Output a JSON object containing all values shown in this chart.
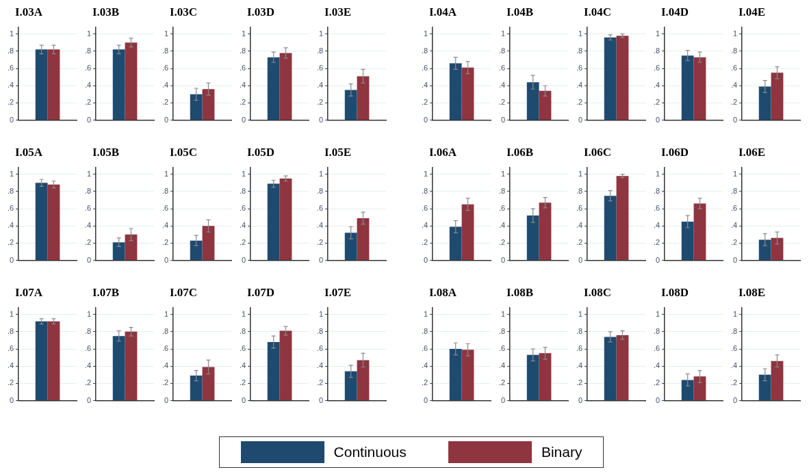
{
  "chart_data": [
    {
      "type": "bar",
      "title": "I.03A",
      "categories": [
        null
      ],
      "ylim": [
        0,
        1.08
      ],
      "yticks": [
        {
          "value": 0,
          "label": "0"
        },
        {
          "value": 0.2,
          "label": ".2"
        },
        {
          "value": 0.4,
          "label": ".4"
        },
        {
          "value": 0.6,
          "label": ".6"
        },
        {
          "value": 0.8,
          "label": ".8"
        },
        {
          "value": 1,
          "label": "1"
        }
      ],
      "grid": "y",
      "legend": "bottom",
      "series": [
        {
          "name": "Continuous",
          "color": "#1f4a70",
          "values": [
            0.82
          ],
          "errors": [
            0.05
          ]
        },
        {
          "name": "Binary",
          "color": "#8e3540",
          "values": [
            0.82
          ],
          "errors": [
            0.05
          ]
        }
      ]
    },
    {
      "type": "bar",
      "title": "I.03B",
      "categories": [
        null
      ],
      "ylim": [
        0,
        1.08
      ],
      "yticks": [
        {
          "value": 0,
          "label": "0"
        },
        {
          "value": 0.2,
          "label": ".2"
        },
        {
          "value": 0.4,
          "label": ".4"
        },
        {
          "value": 0.6,
          "label": ".6"
        },
        {
          "value": 0.8,
          "label": ".8"
        },
        {
          "value": 1,
          "label": "1"
        }
      ],
      "grid": "y",
      "series": [
        {
          "color": "#1f4a70",
          "values": [
            0.82
          ],
          "errors": [
            0.05
          ]
        },
        {
          "color": "#8e3540",
          "values": [
            0.9
          ],
          "errors": [
            0.05
          ]
        }
      ]
    },
    {
      "type": "bar",
      "title": "I.03C",
      "categories": [
        null
      ],
      "ylim": [
        0,
        1.08
      ],
      "yticks": [
        {
          "value": 0,
          "label": "0"
        },
        {
          "value": 0.2,
          "label": ".2"
        },
        {
          "value": 0.4,
          "label": ".4"
        },
        {
          "value": 0.6,
          "label": ".6"
        },
        {
          "value": 0.8,
          "label": ".8"
        },
        {
          "value": 1,
          "label": "1"
        }
      ],
      "grid": "y",
      "series": [
        {
          "color": "#1f4a70",
          "values": [
            0.3
          ],
          "errors": [
            0.07
          ]
        },
        {
          "color": "#8e3540",
          "values": [
            0.36
          ],
          "errors": [
            0.07
          ]
        }
      ]
    },
    {
      "type": "bar",
      "title": "I.03D",
      "categories": [
        null
      ],
      "ylim": [
        0,
        1.08
      ],
      "yticks": [
        {
          "value": 0,
          "label": "0"
        },
        {
          "value": 0.2,
          "label": ".2"
        },
        {
          "value": 0.4,
          "label": ".4"
        },
        {
          "value": 0.6,
          "label": ".6"
        },
        {
          "value": 0.8,
          "label": ".8"
        },
        {
          "value": 1,
          "label": "1"
        }
      ],
      "grid": "y",
      "series": [
        {
          "color": "#1f4a70",
          "values": [
            0.73
          ],
          "errors": [
            0.06
          ]
        },
        {
          "color": "#8e3540",
          "values": [
            0.78
          ],
          "errors": [
            0.06
          ]
        }
      ]
    },
    {
      "type": "bar",
      "title": "I.03E",
      "categories": [
        null
      ],
      "ylim": [
        0,
        1.08
      ],
      "yticks": [
        {
          "value": 0,
          "label": "0"
        },
        {
          "value": 0.2,
          "label": ".2"
        },
        {
          "value": 0.4,
          "label": ".4"
        },
        {
          "value": 0.6,
          "label": ".6"
        },
        {
          "value": 0.8,
          "label": ".8"
        },
        {
          "value": 1,
          "label": "1"
        }
      ],
      "grid": "y",
      "series": [
        {
          "color": "#1f4a70",
          "values": [
            0.35
          ],
          "errors": [
            0.07
          ]
        },
        {
          "color": "#8e3540",
          "values": [
            0.51
          ],
          "errors": [
            0.08
          ]
        }
      ]
    },
    {
      "type": "bar",
      "title": "I.04A",
      "categories": [
        null
      ],
      "ylim": [
        0,
        1.08
      ],
      "yticks": [
        {
          "value": 0,
          "label": "0"
        },
        {
          "value": 0.2,
          "label": ".2"
        },
        {
          "value": 0.4,
          "label": ".4"
        },
        {
          "value": 0.6,
          "label": ".6"
        },
        {
          "value": 0.8,
          "label": ".8"
        },
        {
          "value": 1,
          "label": "1"
        }
      ],
      "grid": "y",
      "series": [
        {
          "color": "#1f4a70",
          "values": [
            0.66
          ],
          "errors": [
            0.07
          ]
        },
        {
          "color": "#8e3540",
          "values": [
            0.61
          ],
          "errors": [
            0.07
          ]
        }
      ]
    },
    {
      "type": "bar",
      "title": "I.04B",
      "categories": [
        null
      ],
      "ylim": [
        0,
        1.08
      ],
      "yticks": [
        {
          "value": 0,
          "label": "0"
        },
        {
          "value": 0.2,
          "label": ".2"
        },
        {
          "value": 0.4,
          "label": ".4"
        },
        {
          "value": 0.6,
          "label": ".6"
        },
        {
          "value": 0.8,
          "label": ".8"
        },
        {
          "value": 1,
          "label": "1"
        }
      ],
      "grid": "y",
      "series": [
        {
          "color": "#1f4a70",
          "values": [
            0.44
          ],
          "errors": [
            0.08
          ]
        },
        {
          "color": "#8e3540",
          "values": [
            0.34
          ],
          "errors": [
            0.06
          ]
        }
      ]
    },
    {
      "type": "bar",
      "title": "I.04C",
      "categories": [
        null
      ],
      "ylim": [
        0,
        1.08
      ],
      "yticks": [
        {
          "value": 0,
          "label": "0"
        },
        {
          "value": 0.2,
          "label": ".2"
        },
        {
          "value": 0.4,
          "label": ".4"
        },
        {
          "value": 0.6,
          "label": ".6"
        },
        {
          "value": 0.8,
          "label": ".8"
        },
        {
          "value": 1,
          "label": "1"
        }
      ],
      "grid": "y",
      "series": [
        {
          "color": "#1f4a70",
          "values": [
            0.96
          ],
          "errors": [
            0.03
          ]
        },
        {
          "color": "#8e3540",
          "values": [
            0.98
          ],
          "errors": [
            0.02
          ]
        }
      ]
    },
    {
      "type": "bar",
      "title": "I.04D",
      "categories": [
        null
      ],
      "ylim": [
        0,
        1.08
      ],
      "yticks": [
        {
          "value": 0,
          "label": "0"
        },
        {
          "value": 0.2,
          "label": ".2"
        },
        {
          "value": 0.4,
          "label": ".4"
        },
        {
          "value": 0.6,
          "label": ".6"
        },
        {
          "value": 0.8,
          "label": ".8"
        },
        {
          "value": 1,
          "label": "1"
        }
      ],
      "grid": "y",
      "series": [
        {
          "color": "#1f4a70",
          "values": [
            0.75
          ],
          "errors": [
            0.06
          ]
        },
        {
          "color": "#8e3540",
          "values": [
            0.73
          ],
          "errors": [
            0.06
          ]
        }
      ]
    },
    {
      "type": "bar",
      "title": "I.04E",
      "categories": [
        null
      ],
      "ylim": [
        0,
        1.08
      ],
      "yticks": [
        {
          "value": 0,
          "label": "0"
        },
        {
          "value": 0.2,
          "label": ".2"
        },
        {
          "value": 0.4,
          "label": ".4"
        },
        {
          "value": 0.6,
          "label": ".6"
        },
        {
          "value": 0.8,
          "label": ".8"
        },
        {
          "value": 1,
          "label": "1"
        }
      ],
      "grid": "y",
      "series": [
        {
          "color": "#1f4a70",
          "values": [
            0.39
          ],
          "errors": [
            0.07
          ]
        },
        {
          "color": "#8e3540",
          "values": [
            0.55
          ],
          "errors": [
            0.07
          ]
        }
      ]
    },
    {
      "type": "bar",
      "title": "I.05A",
      "categories": [
        null
      ],
      "ylim": [
        0,
        1.08
      ],
      "yticks": [
        {
          "value": 0,
          "label": "0"
        },
        {
          "value": 0.2,
          "label": ".2"
        },
        {
          "value": 0.4,
          "label": ".4"
        },
        {
          "value": 0.6,
          "label": ".6"
        },
        {
          "value": 0.8,
          "label": ".8"
        },
        {
          "value": 1,
          "label": "1"
        }
      ],
      "grid": "y",
      "series": [
        {
          "color": "#1f4a70",
          "values": [
            0.9
          ],
          "errors": [
            0.04
          ]
        },
        {
          "color": "#8e3540",
          "values": [
            0.88
          ],
          "errors": [
            0.04
          ]
        }
      ]
    },
    {
      "type": "bar",
      "title": "I.05B",
      "categories": [
        null
      ],
      "ylim": [
        0,
        1.08
      ],
      "yticks": [
        {
          "value": 0,
          "label": "0"
        },
        {
          "value": 0.2,
          "label": ".2"
        },
        {
          "value": 0.4,
          "label": ".4"
        },
        {
          "value": 0.6,
          "label": ".6"
        },
        {
          "value": 0.8,
          "label": ".8"
        },
        {
          "value": 1,
          "label": "1"
        }
      ],
      "grid": "y",
      "series": [
        {
          "color": "#1f4a70",
          "values": [
            0.21
          ],
          "errors": [
            0.05
          ]
        },
        {
          "color": "#8e3540",
          "values": [
            0.3
          ],
          "errors": [
            0.07
          ]
        }
      ]
    },
    {
      "type": "bar",
      "title": "I.05C",
      "categories": [
        null
      ],
      "ylim": [
        0,
        1.08
      ],
      "yticks": [
        {
          "value": 0,
          "label": "0"
        },
        {
          "value": 0.2,
          "label": ".2"
        },
        {
          "value": 0.4,
          "label": ".4"
        },
        {
          "value": 0.6,
          "label": ".6"
        },
        {
          "value": 0.8,
          "label": ".8"
        },
        {
          "value": 1,
          "label": "1"
        }
      ],
      "grid": "y",
      "series": [
        {
          "color": "#1f4a70",
          "values": [
            0.23
          ],
          "errors": [
            0.06
          ]
        },
        {
          "color": "#8e3540",
          "values": [
            0.4
          ],
          "errors": [
            0.07
          ]
        }
      ]
    },
    {
      "type": "bar",
      "title": "I.05D",
      "categories": [
        null
      ],
      "ylim": [
        0,
        1.08
      ],
      "yticks": [
        {
          "value": 0,
          "label": "0"
        },
        {
          "value": 0.2,
          "label": ".2"
        },
        {
          "value": 0.4,
          "label": ".4"
        },
        {
          "value": 0.6,
          "label": ".6"
        },
        {
          "value": 0.8,
          "label": ".8"
        },
        {
          "value": 1,
          "label": "1"
        }
      ],
      "grid": "y",
      "series": [
        {
          "color": "#1f4a70",
          "values": [
            0.89
          ],
          "errors": [
            0.04
          ]
        },
        {
          "color": "#8e3540",
          "values": [
            0.95
          ],
          "errors": [
            0.03
          ]
        }
      ]
    },
    {
      "type": "bar",
      "title": "I.05E",
      "categories": [
        null
      ],
      "ylim": [
        0,
        1.08
      ],
      "yticks": [
        {
          "value": 0,
          "label": "0"
        },
        {
          "value": 0.2,
          "label": ".2"
        },
        {
          "value": 0.4,
          "label": ".4"
        },
        {
          "value": 0.6,
          "label": ".6"
        },
        {
          "value": 0.8,
          "label": ".8"
        },
        {
          "value": 1,
          "label": "1"
        }
      ],
      "grid": "y",
      "series": [
        {
          "color": "#1f4a70",
          "values": [
            0.32
          ],
          "errors": [
            0.07
          ]
        },
        {
          "color": "#8e3540",
          "values": [
            0.49
          ],
          "errors": [
            0.07
          ]
        }
      ]
    },
    {
      "type": "bar",
      "title": "I.06A",
      "categories": [
        null
      ],
      "ylim": [
        0,
        1.08
      ],
      "yticks": [
        {
          "value": 0,
          "label": "0"
        },
        {
          "value": 0.2,
          "label": ".2"
        },
        {
          "value": 0.4,
          "label": ".4"
        },
        {
          "value": 0.6,
          "label": ".6"
        },
        {
          "value": 0.8,
          "label": ".8"
        },
        {
          "value": 1,
          "label": "1"
        }
      ],
      "grid": "y",
      "series": [
        {
          "color": "#1f4a70",
          "values": [
            0.39
          ],
          "errors": [
            0.07
          ]
        },
        {
          "color": "#8e3540",
          "values": [
            0.65
          ],
          "errors": [
            0.07
          ]
        }
      ]
    },
    {
      "type": "bar",
      "title": "I.06B",
      "categories": [
        null
      ],
      "ylim": [
        0,
        1.08
      ],
      "yticks": [
        {
          "value": 0,
          "label": "0"
        },
        {
          "value": 0.2,
          "label": ".2"
        },
        {
          "value": 0.4,
          "label": ".4"
        },
        {
          "value": 0.6,
          "label": ".6"
        },
        {
          "value": 0.8,
          "label": ".8"
        },
        {
          "value": 1,
          "label": "1"
        }
      ],
      "grid": "y",
      "series": [
        {
          "color": "#1f4a70",
          "values": [
            0.52
          ],
          "errors": [
            0.08
          ]
        },
        {
          "color": "#8e3540",
          "values": [
            0.67
          ],
          "errors": [
            0.06
          ]
        }
      ]
    },
    {
      "type": "bar",
      "title": "I.06C",
      "categories": [
        null
      ],
      "ylim": [
        0,
        1.08
      ],
      "yticks": [
        {
          "value": 0,
          "label": "0"
        },
        {
          "value": 0.2,
          "label": ".2"
        },
        {
          "value": 0.4,
          "label": ".4"
        },
        {
          "value": 0.6,
          "label": ".6"
        },
        {
          "value": 0.8,
          "label": ".8"
        },
        {
          "value": 1,
          "label": "1"
        }
      ],
      "grid": "y",
      "series": [
        {
          "color": "#1f4a70",
          "values": [
            0.75
          ],
          "errors": [
            0.06
          ]
        },
        {
          "color": "#8e3540",
          "values": [
            0.98
          ],
          "errors": [
            0.02
          ]
        }
      ]
    },
    {
      "type": "bar",
      "title": "I.06D",
      "categories": [
        null
      ],
      "ylim": [
        0,
        1.08
      ],
      "yticks": [
        {
          "value": 0,
          "label": "0"
        },
        {
          "value": 0.2,
          "label": ".2"
        },
        {
          "value": 0.4,
          "label": ".4"
        },
        {
          "value": 0.6,
          "label": ".6"
        },
        {
          "value": 0.8,
          "label": ".8"
        },
        {
          "value": 1,
          "label": "1"
        }
      ],
      "grid": "y",
      "series": [
        {
          "color": "#1f4a70",
          "values": [
            0.45
          ],
          "errors": [
            0.07
          ]
        },
        {
          "color": "#8e3540",
          "values": [
            0.66
          ],
          "errors": [
            0.06
          ]
        }
      ]
    },
    {
      "type": "bar",
      "title": "I.06E",
      "categories": [
        null
      ],
      "ylim": [
        0,
        1.08
      ],
      "yticks": [
        {
          "value": 0,
          "label": "0"
        },
        {
          "value": 0.2,
          "label": ".2"
        },
        {
          "value": 0.4,
          "label": ".4"
        },
        {
          "value": 0.6,
          "label": ".6"
        },
        {
          "value": 0.8,
          "label": ".8"
        },
        {
          "value": 1,
          "label": "1"
        }
      ],
      "grid": "y",
      "series": [
        {
          "color": "#1f4a70",
          "values": [
            0.24
          ],
          "errors": [
            0.07
          ]
        },
        {
          "color": "#8e3540",
          "values": [
            0.26
          ],
          "errors": [
            0.07
          ]
        }
      ]
    },
    {
      "type": "bar",
      "title": "I.07A",
      "categories": [
        null
      ],
      "ylim": [
        0,
        1.08
      ],
      "yticks": [
        {
          "value": 0,
          "label": "0"
        },
        {
          "value": 0.2,
          "label": ".2"
        },
        {
          "value": 0.4,
          "label": ".4"
        },
        {
          "value": 0.6,
          "label": ".6"
        },
        {
          "value": 0.8,
          "label": ".8"
        },
        {
          "value": 1,
          "label": "1"
        }
      ],
      "grid": "y",
      "series": [
        {
          "color": "#1f4a70",
          "values": [
            0.92
          ],
          "errors": [
            0.03
          ]
        },
        {
          "color": "#8e3540",
          "values": [
            0.92
          ],
          "errors": [
            0.03
          ]
        }
      ]
    },
    {
      "type": "bar",
      "title": "I.07B",
      "categories": [
        null
      ],
      "ylim": [
        0,
        1.08
      ],
      "yticks": [
        {
          "value": 0,
          "label": "0"
        },
        {
          "value": 0.2,
          "label": ".2"
        },
        {
          "value": 0.4,
          "label": ".4"
        },
        {
          "value": 0.6,
          "label": ".6"
        },
        {
          "value": 0.8,
          "label": ".8"
        },
        {
          "value": 1,
          "label": "1"
        }
      ],
      "grid": "y",
      "series": [
        {
          "color": "#1f4a70",
          "values": [
            0.75
          ],
          "errors": [
            0.06
          ]
        },
        {
          "color": "#8e3540",
          "values": [
            0.8
          ],
          "errors": [
            0.05
          ]
        }
      ]
    },
    {
      "type": "bar",
      "title": "I.07C",
      "categories": [
        null
      ],
      "ylim": [
        0,
        1.08
      ],
      "yticks": [
        {
          "value": 0,
          "label": "0"
        },
        {
          "value": 0.2,
          "label": ".2"
        },
        {
          "value": 0.4,
          "label": ".4"
        },
        {
          "value": 0.6,
          "label": ".6"
        },
        {
          "value": 0.8,
          "label": ".8"
        },
        {
          "value": 1,
          "label": "1"
        }
      ],
      "grid": "y",
      "series": [
        {
          "color": "#1f4a70",
          "values": [
            0.29
          ],
          "errors": [
            0.06
          ]
        },
        {
          "color": "#8e3540",
          "values": [
            0.39
          ],
          "errors": [
            0.08
          ]
        }
      ]
    },
    {
      "type": "bar",
      "title": "I.07D",
      "categories": [
        null
      ],
      "ylim": [
        0,
        1.08
      ],
      "yticks": [
        {
          "value": 0,
          "label": "0"
        },
        {
          "value": 0.2,
          "label": ".2"
        },
        {
          "value": 0.4,
          "label": ".4"
        },
        {
          "value": 0.6,
          "label": ".6"
        },
        {
          "value": 0.8,
          "label": ".8"
        },
        {
          "value": 1,
          "label": "1"
        }
      ],
      "grid": "y",
      "series": [
        {
          "color": "#1f4a70",
          "values": [
            0.68
          ],
          "errors": [
            0.07
          ]
        },
        {
          "color": "#8e3540",
          "values": [
            0.81
          ],
          "errors": [
            0.05
          ]
        }
      ]
    },
    {
      "type": "bar",
      "title": "I.07E",
      "categories": [
        null
      ],
      "ylim": [
        0,
        1.08
      ],
      "yticks": [
        {
          "value": 0,
          "label": "0"
        },
        {
          "value": 0.2,
          "label": ".2"
        },
        {
          "value": 0.4,
          "label": ".4"
        },
        {
          "value": 0.6,
          "label": ".6"
        },
        {
          "value": 0.8,
          "label": ".8"
        },
        {
          "value": 1,
          "label": "1"
        }
      ],
      "grid": "y",
      "series": [
        {
          "color": "#1f4a70",
          "values": [
            0.34
          ],
          "errors": [
            0.07
          ]
        },
        {
          "color": "#8e3540",
          "values": [
            0.47
          ],
          "errors": [
            0.08
          ]
        }
      ]
    },
    {
      "type": "bar",
      "title": "I.08A",
      "categories": [
        null
      ],
      "ylim": [
        0,
        1.08
      ],
      "yticks": [
        {
          "value": 0,
          "label": "0"
        },
        {
          "value": 0.2,
          "label": ".2"
        },
        {
          "value": 0.4,
          "label": ".4"
        },
        {
          "value": 0.6,
          "label": ".6"
        },
        {
          "value": 0.8,
          "label": ".8"
        },
        {
          "value": 1,
          "label": "1"
        }
      ],
      "grid": "y",
      "series": [
        {
          "color": "#1f4a70",
          "values": [
            0.6
          ],
          "errors": [
            0.07
          ]
        },
        {
          "color": "#8e3540",
          "values": [
            0.59
          ],
          "errors": [
            0.07
          ]
        }
      ]
    },
    {
      "type": "bar",
      "title": "I.08B",
      "categories": [
        null
      ],
      "ylim": [
        0,
        1.08
      ],
      "yticks": [
        {
          "value": 0,
          "label": "0"
        },
        {
          "value": 0.2,
          "label": ".2"
        },
        {
          "value": 0.4,
          "label": ".4"
        },
        {
          "value": 0.6,
          "label": ".6"
        },
        {
          "value": 0.8,
          "label": ".8"
        },
        {
          "value": 1,
          "label": "1"
        }
      ],
      "grid": "y",
      "series": [
        {
          "color": "#1f4a70",
          "values": [
            0.53
          ],
          "errors": [
            0.07
          ]
        },
        {
          "color": "#8e3540",
          "values": [
            0.55
          ],
          "errors": [
            0.07
          ]
        }
      ]
    },
    {
      "type": "bar",
      "title": "I.08C",
      "categories": [
        null
      ],
      "ylim": [
        0,
        1.08
      ],
      "yticks": [
        {
          "value": 0,
          "label": "0"
        },
        {
          "value": 0.2,
          "label": ".2"
        },
        {
          "value": 0.4,
          "label": ".4"
        },
        {
          "value": 0.6,
          "label": ".6"
        },
        {
          "value": 0.8,
          "label": ".8"
        },
        {
          "value": 1,
          "label": "1"
        }
      ],
      "grid": "y",
      "series": [
        {
          "color": "#1f4a70",
          "values": [
            0.74
          ],
          "errors": [
            0.06
          ]
        },
        {
          "color": "#8e3540",
          "values": [
            0.76
          ],
          "errors": [
            0.05
          ]
        }
      ]
    },
    {
      "type": "bar",
      "title": "I.08D",
      "categories": [
        null
      ],
      "ylim": [
        0,
        1.08
      ],
      "yticks": [
        {
          "value": 0,
          "label": "0"
        },
        {
          "value": 0.2,
          "label": ".2"
        },
        {
          "value": 0.4,
          "label": ".4"
        },
        {
          "value": 0.6,
          "label": ".6"
        },
        {
          "value": 0.8,
          "label": ".8"
        },
        {
          "value": 1,
          "label": "1"
        }
      ],
      "grid": "y",
      "series": [
        {
          "color": "#1f4a70",
          "values": [
            0.24
          ],
          "errors": [
            0.07
          ]
        },
        {
          "color": "#8e3540",
          "values": [
            0.28
          ],
          "errors": [
            0.07
          ]
        }
      ]
    },
    {
      "type": "bar",
      "title": "I.08E",
      "categories": [
        null
      ],
      "ylim": [
        0,
        1.08
      ],
      "yticks": [
        {
          "value": 0,
          "label": "0"
        },
        {
          "value": 0.2,
          "label": ".2"
        },
        {
          "value": 0.4,
          "label": ".4"
        },
        {
          "value": 0.6,
          "label": ".6"
        },
        {
          "value": 0.8,
          "label": ".8"
        },
        {
          "value": 1,
          "label": "1"
        }
      ],
      "grid": "y",
      "series": [
        {
          "color": "#1f4a70",
          "values": [
            0.3
          ],
          "errors": [
            0.07
          ]
        },
        {
          "color": "#8e3540",
          "values": [
            0.46
          ],
          "errors": [
            0.07
          ]
        }
      ]
    }
  ]
}
